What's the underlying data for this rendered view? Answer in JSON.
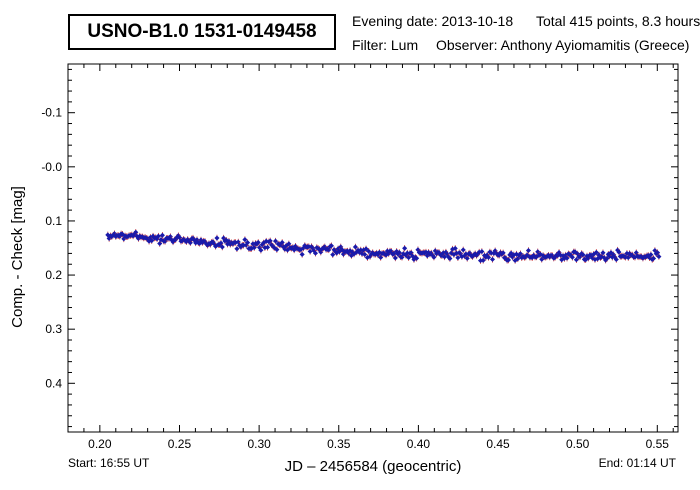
{
  "header": {
    "star_name": "USNO-B1.0 1531-0149458",
    "evening_date": "Evening date: 2013-10-18",
    "total_points": "Total 415 points, 8.3 hours",
    "filter": "Filter: Lum",
    "observer": "Observer: Anthony Ayiomamitis (Greece)"
  },
  "footer": {
    "start": "Start: 16:55 UT",
    "end": "End: 01:14 UT"
  },
  "colors": {
    "point": "#1a1aaa",
    "error_bar": "#cc3333",
    "frame": "#000000"
  },
  "chart_data": {
    "type": "scatter",
    "title": "USNO-B1.0 1531-0149458",
    "xlabel": "JD – 2456584  (geocentric)",
    "ylabel": "Comp. - Check [mag]",
    "xlim": [
      0.18,
      0.563
    ],
    "ylim": [
      -0.19,
      0.49
    ],
    "y_inverted": true,
    "grid": false,
    "x_ticks": [
      0.2,
      0.25,
      0.3,
      0.35,
      0.4,
      0.45,
      0.5,
      0.55
    ],
    "x_tick_labels": [
      "0.20",
      "0.25",
      "0.30",
      "0.35",
      "0.40",
      "0.45",
      "0.50",
      "0.55"
    ],
    "y_ticks": [
      -0.1,
      0.0,
      0.1,
      0.2,
      0.3,
      0.4
    ],
    "y_tick_labels": [
      "-0.1",
      "-0.0",
      "0.1",
      "0.2",
      "0.3",
      "0.4"
    ],
    "points_total": 415,
    "x_start": 0.205,
    "x_end": 0.551,
    "trend": [
      {
        "x": 0.205,
        "y": 0.125
      },
      {
        "x": 0.25,
        "y": 0.135
      },
      {
        "x": 0.3,
        "y": 0.145
      },
      {
        "x": 0.35,
        "y": 0.155
      },
      {
        "x": 0.4,
        "y": 0.162
      },
      {
        "x": 0.45,
        "y": 0.164
      },
      {
        "x": 0.5,
        "y": 0.165
      },
      {
        "x": 0.551,
        "y": 0.165
      }
    ],
    "scatter_amplitude": 0.008,
    "error_bar_halfwidth": 0.006
  }
}
